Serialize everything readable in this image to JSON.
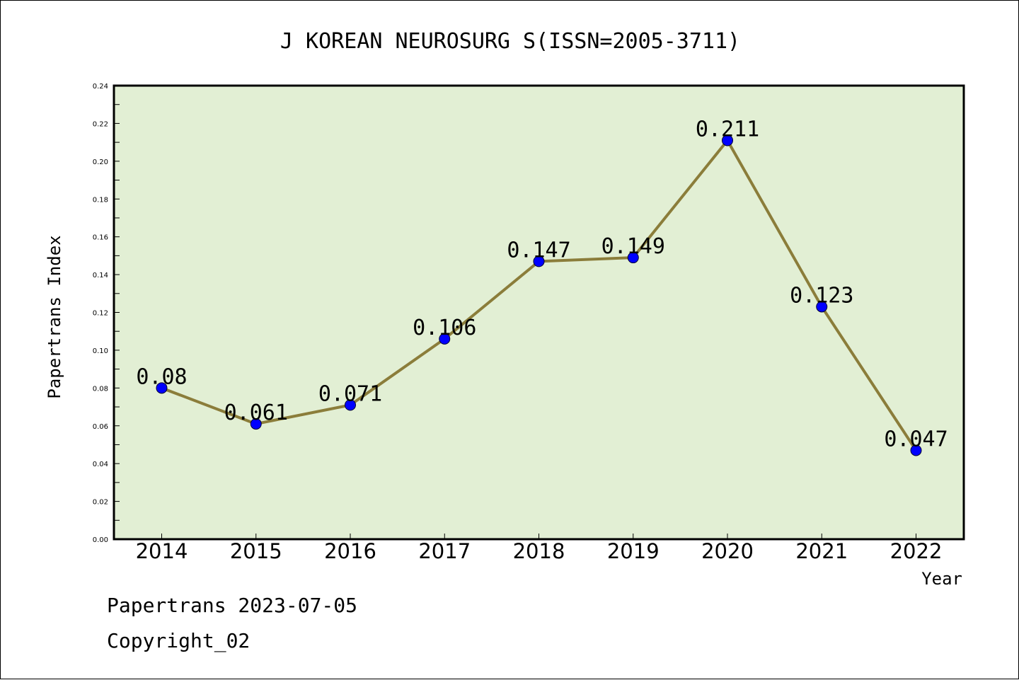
{
  "chart_data": {
    "type": "line",
    "title": "J KOREAN NEUROSURG S(ISSN=2005-3711)",
    "xlabel": "Year",
    "ylabel": "Papertrans Index",
    "categories": [
      "2014",
      "2015",
      "2016",
      "2017",
      "2018",
      "2019",
      "2020",
      "2021",
      "2022"
    ],
    "values": [
      0.08,
      0.061,
      0.071,
      0.106,
      0.147,
      0.149,
      0.211,
      0.123,
      0.047
    ],
    "data_labels": [
      "0.08",
      "0.061",
      "0.071",
      "0.106",
      "0.147",
      "0.149",
      "0.211",
      "0.123",
      "0.047"
    ],
    "ylim": [
      0,
      0.24
    ],
    "yticks": [
      "0.00",
      "0.02",
      "0.04",
      "0.06",
      "0.08",
      "0.10",
      "0.12",
      "0.14",
      "0.16",
      "0.18",
      "0.20",
      "0.22",
      "0.24"
    ],
    "grid": false,
    "legend": "none",
    "colors": {
      "plot_background": "#e2efd4",
      "line": "#8b7d3a",
      "marker": "#0000ff"
    }
  },
  "footer": {
    "line1": "Papertrans 2023-07-05",
    "line2": "Copyright_02"
  }
}
